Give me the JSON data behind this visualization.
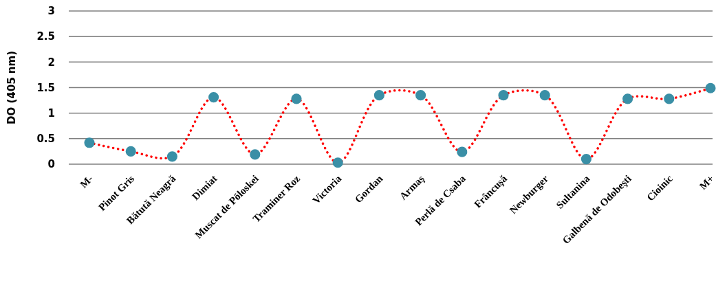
{
  "chart_data": {
    "type": "line",
    "ylabel": "DO (405 nm)",
    "categories": [
      "M-",
      "Pinot Gris",
      "Bătută Neagră",
      "Dimiat",
      "Muscat de Pöloskei",
      "Traminer Roz",
      "Victoria",
      "Gordan",
      "Armaş",
      "Perlă de Csaba",
      "Frâncuşă",
      "Newburger",
      "Sultanina",
      "Galbenă de Odobeşti",
      "Cioinic",
      "M+"
    ],
    "series": [
      {
        "color": "#ff0000",
        "line_style": "dotted",
        "marker": "none",
        "values": [
          0.42,
          0.25,
          0.15,
          1.31,
          0.19,
          1.28,
          0.03,
          1.35,
          1.35,
          0.24,
          1.35,
          1.35,
          0.1,
          1.28,
          1.28,
          1.49
        ]
      },
      {
        "type": "scatter",
        "color": "#3a8fa6",
        "marker": "circle",
        "values": [
          0.42,
          0.25,
          0.15,
          1.31,
          0.19,
          1.28,
          0.03,
          1.35,
          1.35,
          0.24,
          1.35,
          1.35,
          0.1,
          1.28,
          1.28,
          1.49
        ]
      }
    ],
    "ylim": [
      0,
      3
    ],
    "yticks": [
      0,
      0.5,
      1,
      1.5,
      2,
      2.5,
      3
    ],
    "grid": "y"
  }
}
